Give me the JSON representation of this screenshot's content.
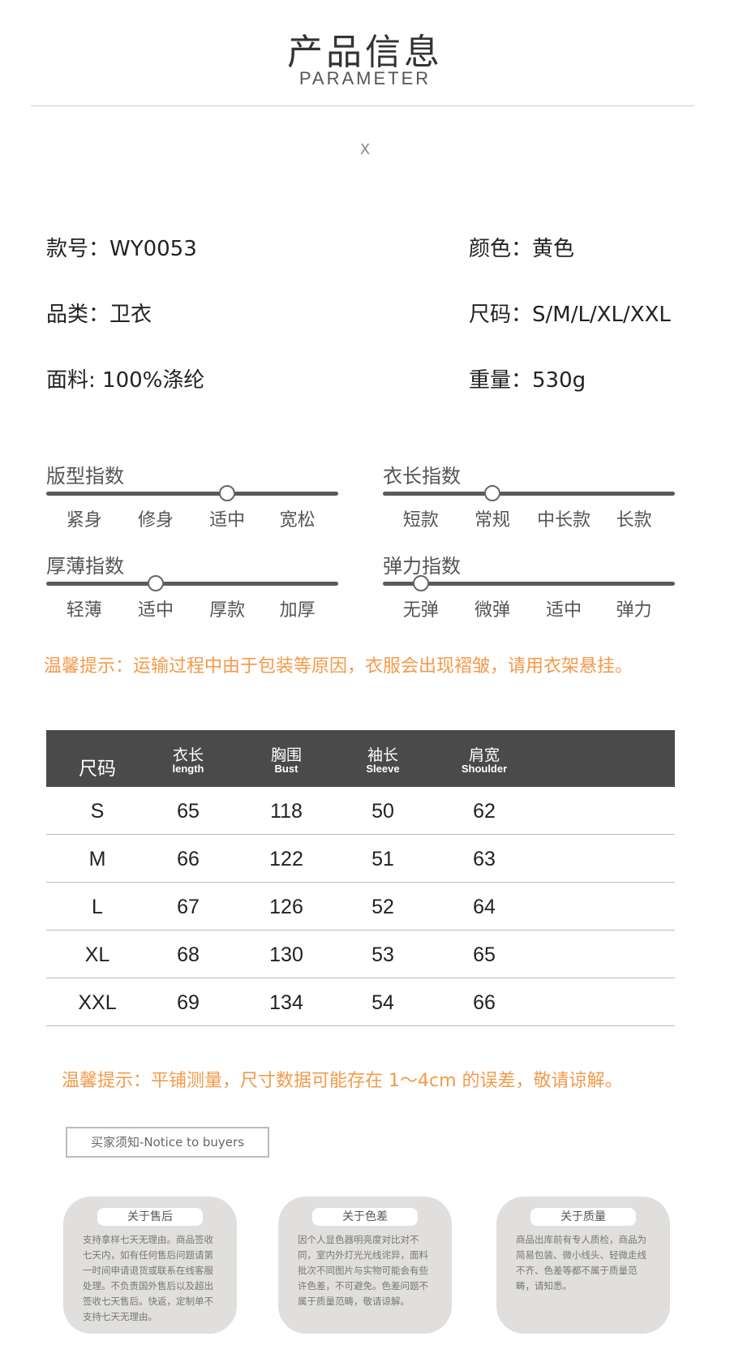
{
  "header": {
    "title": "产品信息",
    "subtitle": "PARAMETER",
    "close": "X"
  },
  "info": {
    "left": [
      "款号：WY0053",
      "品类：卫衣",
      "面料: 100%涤纶"
    ],
    "right": [
      "颜色：黄色",
      "尺码：S/M/L/XL/XXL",
      "重量：530g"
    ]
  },
  "sliders": [
    {
      "title": "版型指数",
      "labels": [
        "紧身",
        "修身",
        "适中",
        "宽松"
      ],
      "selected": "适中"
    },
    {
      "title": "衣长指数",
      "labels": [
        "短款",
        "常规",
        "中长款",
        "长款"
      ],
      "selected": "常规"
    },
    {
      "title": "厚薄指数",
      "labels": [
        "轻薄",
        "适中",
        "厚款",
        "加厚"
      ],
      "selected": "适中"
    },
    {
      "title": "弹力指数",
      "labels": [
        "无弹",
        "微弹",
        "适中",
        "弹力"
      ],
      "selected": "无弹"
    }
  ],
  "warning1": "温馨提示：运输过程中由于包装等原因，衣服会出现褶皱，请用衣架悬挂。",
  "table": {
    "headers": [
      {
        "zh": "尺码",
        "en": ""
      },
      {
        "zh": "衣长",
        "en": "length"
      },
      {
        "zh": "胸围",
        "en": "Bust"
      },
      {
        "zh": "袖长",
        "en": "Sleeve"
      },
      {
        "zh": "肩宽",
        "en": "Shoulder"
      }
    ],
    "rows": [
      [
        "S",
        "65",
        "118",
        "50",
        "62"
      ],
      [
        "M",
        "66",
        "122",
        "51",
        "63"
      ],
      [
        "L",
        "67",
        "126",
        "52",
        "64"
      ],
      [
        "XL",
        "68",
        "130",
        "53",
        "65"
      ],
      [
        "XXL",
        "69",
        "134",
        "54",
        "66"
      ]
    ]
  },
  "warning2": "温馨提示：平铺测量，尺寸数据可能存在 1～4cm 的误差，敬请谅解。",
  "notice": "买家须知-Notice to buyers",
  "cards": [
    {
      "title": "关于售后",
      "body": "支持拿样七天无理由。商品签收七天内，如有任何售后问题请第一时间申请退货或联系在线客服处理。不负责国外售后以及超出签收七天售后。快返，定制单不支持七天无理由。"
    },
    {
      "title": "关于色差",
      "body": "因个人显色器明亮度对比对不同，室内外灯光光线诧异，面料批次不同图片与实物可能会有些许色差，不可避免。色差问题不属于质量范畴，敬请谅解。"
    },
    {
      "title": "关于质量",
      "body": "商品出库前有专人质检，商品为简易包装、微小线头、轻微走线不齐、色差等都不属于质量范畴，请知悉。"
    }
  ],
  "colors": {
    "accent": "#f39a4a",
    "table_header": "#4a4a4a",
    "card": "#e0dfdd"
  }
}
